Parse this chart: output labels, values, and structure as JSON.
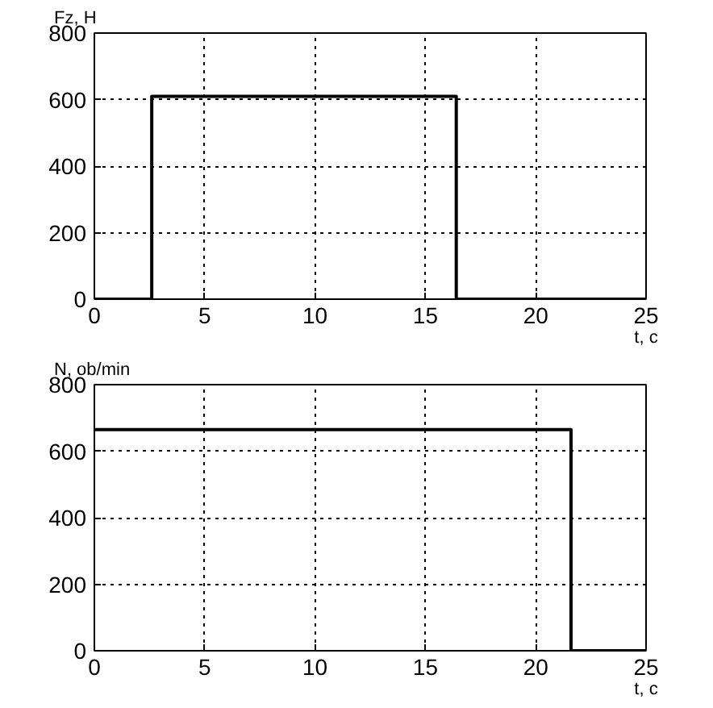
{
  "chart_data": [
    {
      "type": "step",
      "ylabel": "Fz, H",
      "xlabel": "t, c",
      "x": [
        0,
        2.6,
        16.4,
        25
      ],
      "series": [
        {
          "color": "#000000",
          "values": [
            0,
            610,
            0,
            0
          ]
        }
      ],
      "xlim": [
        0,
        25
      ],
      "ylim": [
        0,
        800
      ],
      "xticks": [
        0,
        5,
        10,
        15,
        20,
        25
      ],
      "yticks": [
        0,
        200,
        400,
        600,
        800
      ],
      "grid": true,
      "line_style": "solid"
    },
    {
      "type": "step",
      "ylabel": "N, ob/min",
      "xlabel": "t, c",
      "x": [
        0,
        21.6,
        25
      ],
      "series": [
        {
          "color": "#000000",
          "values": [
            665,
            0,
            0
          ]
        }
      ],
      "xlim": [
        0,
        25
      ],
      "ylim": [
        0,
        800
      ],
      "xticks": [
        0,
        5,
        10,
        15,
        20,
        25
      ],
      "yticks": [
        0,
        200,
        400,
        600,
        800
      ],
      "grid": true,
      "line_style": "solid"
    }
  ]
}
